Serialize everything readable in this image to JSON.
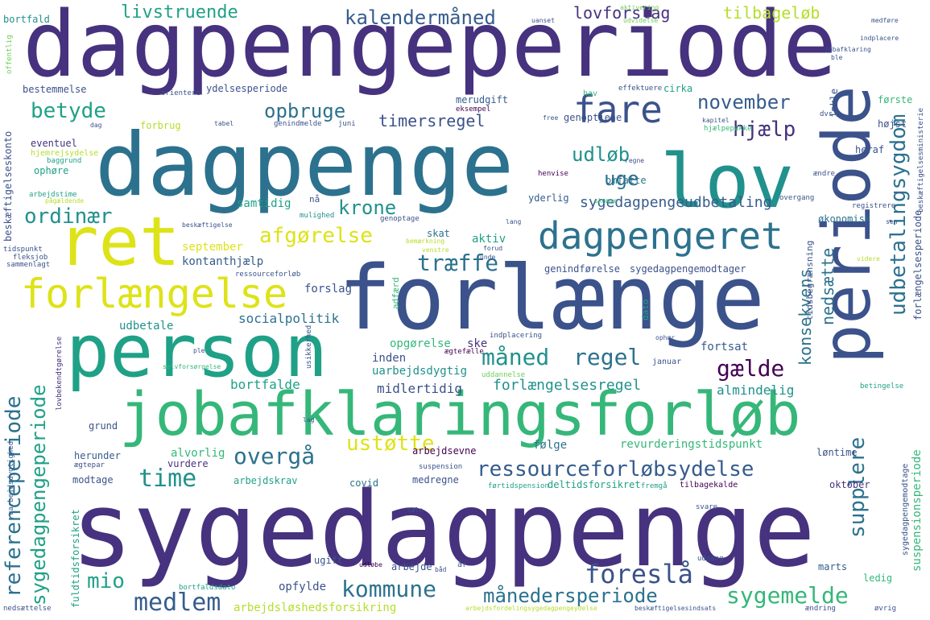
{
  "words": {
    "dagpengeperiode": "dagpengeperiode",
    "dagpenge": "dagpenge",
    "sygedagpenge": "sygedagpenge",
    "forlaenge": "forlænge",
    "person": "person",
    "jobafklaringsforloeb": "jobafklaringsforløb",
    "lov": "lov",
    "periode": "periode",
    "ret": "ret",
    "forlaengelse": "forlængelse",
    "dagpengeret": "dagpengeret",
    "fare": "fare",
    "ressourceforloebsydelse": "ressourceforløbsydelse",
    "maanedersperiode": "månedersperiode",
    "sygemelde": "sygemelde",
    "kommune": "kommune",
    "medlem": "medlem",
    "foreslaa": "foreslå",
    "mio": "mio",
    "time": "time",
    "overgaa": "overgå",
    "ustoette": "ustøtte",
    "maaned": "måned",
    "regel": "regel",
    "gaelde": "gælde",
    "krone": "krone",
    "afgoerelse": "afgørelse",
    "traeffe": "træffe",
    "ordinaer": "ordinær",
    "betyde": "betyde",
    "opbruge": "opbruge",
    "udloeb": "udløb",
    "uge": "uge",
    "hjaelp": "hjælp",
    "november": "november",
    "timersregel": "timersregel",
    "livstruende": "livstruende",
    "kalendermaaned": "kalendermåned",
    "lovforslag": "lovforslag",
    "tilbageloeb": "tilbageløb",
    "udbetalingsygdom": "udbetalingsygdom",
    "referenceperiode": "referenceperiode",
    "sygedagpengeperiode": "sygedagpengeperiode",
    "supplere": "supplere",
    "konsekvens": "konsekvens",
    "nedsaette": "nedsætte",
    "sygedagpengeudbetaling": "sygedagpengeudbetaling",
    "forloebsydelse_vertical": "forlængelsesperiode",
    "forlaengelsesregel": "forlængelsesregel",
    "almindelig": "almindelig",
    "midlertidig": "midlertidig",
    "bortfalde": "bortfalde",
    "uarbejdsdygtig": "uarbejdsdygtig",
    "inden": "inden",
    "fortsat": "fortsat",
    "ske": "ske",
    "opgoerelse": "opgørelse",
    "socialpolitik": "socialpolitik",
    "udbetale": "udbetale",
    "forslag": "forslag",
    "kontanthjaelp": "kontanthjælp",
    "september": "september",
    "genindfoerelse": "genindførelse",
    "sygedagpengemodtager": "sygedagpengemodtager",
    "aktiv": "aktiv",
    "skat": "skat",
    "samtidig": "samtidig",
    "yderlig": "yderlig",
    "genoptjene": "genoptjene",
    "okonomisk": "økonomisk",
    "cirka": "cirka",
    "merudgift": "merudgift",
    "ydelsesperiode": "ydelsesperiode",
    "forbrug": "forbrug",
    "eventuel": "eventuel",
    "ophoere": "ophøre",
    "bestemmelse": "bestemmelse",
    "omfatte": "omfatte",
    "arbejdsevne": "arbejdsevne",
    "revurderingstidspunkt": "revurderingstidspunkt",
    "foelge": "følge",
    "alvorlig": "alvorlig",
    "vurdere": "vurdere",
    "grund": "grund",
    "herunder": "herunder",
    "modtage": "modtage",
    "arbejdskrav": "arbejdskrav",
    "covid": "covid",
    "medregne": "medregne",
    "deltidsforsikret": "deltidsforsikret",
    "oktober": "oktober",
    "loentime": "løntime",
    "ugift": "ugift",
    "arbejde": "arbejde",
    "opfylde": "opfylde",
    "marts": "marts",
    "ledig": "ledig",
    "arbejdsloeshedsforsikring": "arbejdsløshedsforsikring",
    "suspensionsperiode": "suspensionsperiode",
    "fuldtidsforsikret": "fuldtidsforsikret",
    "tidsbegraensning": "tidsbegrænsning",
    "hoejst": "højst",
    "heraf": "heraf",
    "inkle": "inkle",
    "foerste": "første",
    "beskaeftigelseskonto": "beskæftigelseskonto",
    "bortfald": "bortfald",
    "januar": "januar",
    "hav": "hav",
    "gennem_small": "genoptjening",
    "fleksjob": "fleksjob",
    "tidspunkt": "tidspunkt",
    "sammenlagt": "sammenlagt",
    "ressourceforloeb": "ressourceforløb",
    "arbejdstime": "arbejdstime",
    "baggrund": "baggrund",
    "hjemrejsydelse": "hjemrejsydelse",
    "orientere": "orientere",
    "effektuere": "effektuere",
    "eksempel": "eksempel",
    "tabel": "tabel",
    "genindmelde": "genindmelde",
    "juni": "juni",
    "free": "free",
    "hjaelpepakke": "hjælpepakke",
    "dvs": "dvs",
    "aendre": "ændre",
    "regne": "regne",
    "henvise": "henvise",
    "skamme": "skamme",
    "overgang": "overgang",
    "registrere": "registrere",
    "lang": "lang",
    "genoptage": "genoptage",
    "mulighed": "mulighed",
    "naa": "nå",
    "adfaerd": "adfærd",
    "dato": "dato",
    "indplacering": "indplacering",
    "agtefaelle": "ægtefælle",
    "uddannelse": "uddannelse",
    "ophoer": "ophør",
    "betingelse": "betingelse",
    "sygedagpengemodtage": "sygedagpengemodtage",
    "suspension": "suspension",
    "faertidspension": "førtidspension",
    "fremgaa": "fremgå",
    "tilbagekalde": "tilbagekalde",
    "svare": "svare",
    "saele": "sæle",
    "udgang": "udgang",
    "aar": "år",
    "baad": "båd",
    "udlaebe": "udløbe",
    "bortfaldsdato": "bortfaldsdato",
    "arbejdsfordeling": "arbejdsfordelingsygedagpengeydelse",
    "beskaeftigelsesindsats": "beskæftigelsesindsats",
    "aendring": "ændring",
    "oevrig": "øvrig",
    "nedsaettelse": "nedsættelse",
    "uarbejdsdygtighed": "uarbejdsdygtighed",
    "agtepar": "ægtepar",
    "lovbekendtgoerelse": "lovbekendtgørelse",
    "selvforsoergelse": "selvforsørgelse",
    "ple": "ple",
    "aktivering": "aktivering",
    "uanset": "uanset",
    "udvidelse": "udvidelse",
    "medfoere": "medføre",
    "indplacere": "indplacere",
    "jobafklaring": "jobafklaring",
    "ble": "ble",
    "offentlig": "offentlig",
    "arbejdsloeshedskasse": "arbejdsløshedskasse",
    "beskaeftigelsesministerie": "beskæftigelsesministerie",
    "kapitel": "kapitel",
    "genoptjening": "genoptjening",
    "unde": "unde",
    "videre": "videre",
    "ydelse": "ydelse",
    "paagaeldende": "pågældende",
    "bemaerkning": "bemærkning",
    "venstre": "venstre",
    "forud": "forud",
    "overvejelse": "overvejelse",
    "sen": "sen",
    "sin": "sin",
    "dag": "dag",
    "lag": "lag",
    "usikkerhed": "usikkerhed",
    "forlaengelsesperiode": "forlængelsesperiode",
    "beskaeftigelse": "beskæftigelse",
    "tidsbegraensning2": "tidsbegrænsning"
  },
  "colors": {
    "dark_purple": "#440154",
    "indigo": "#3b528b",
    "navy_purple": "#46327e",
    "blue": "#365c8d",
    "teal_blue": "#2c728e",
    "teal": "#21918c",
    "green_teal": "#1fa187",
    "green": "#35b779",
    "light_green": "#6ece58",
    "lime": "#b5de2b",
    "yellow": "#dde318"
  }
}
